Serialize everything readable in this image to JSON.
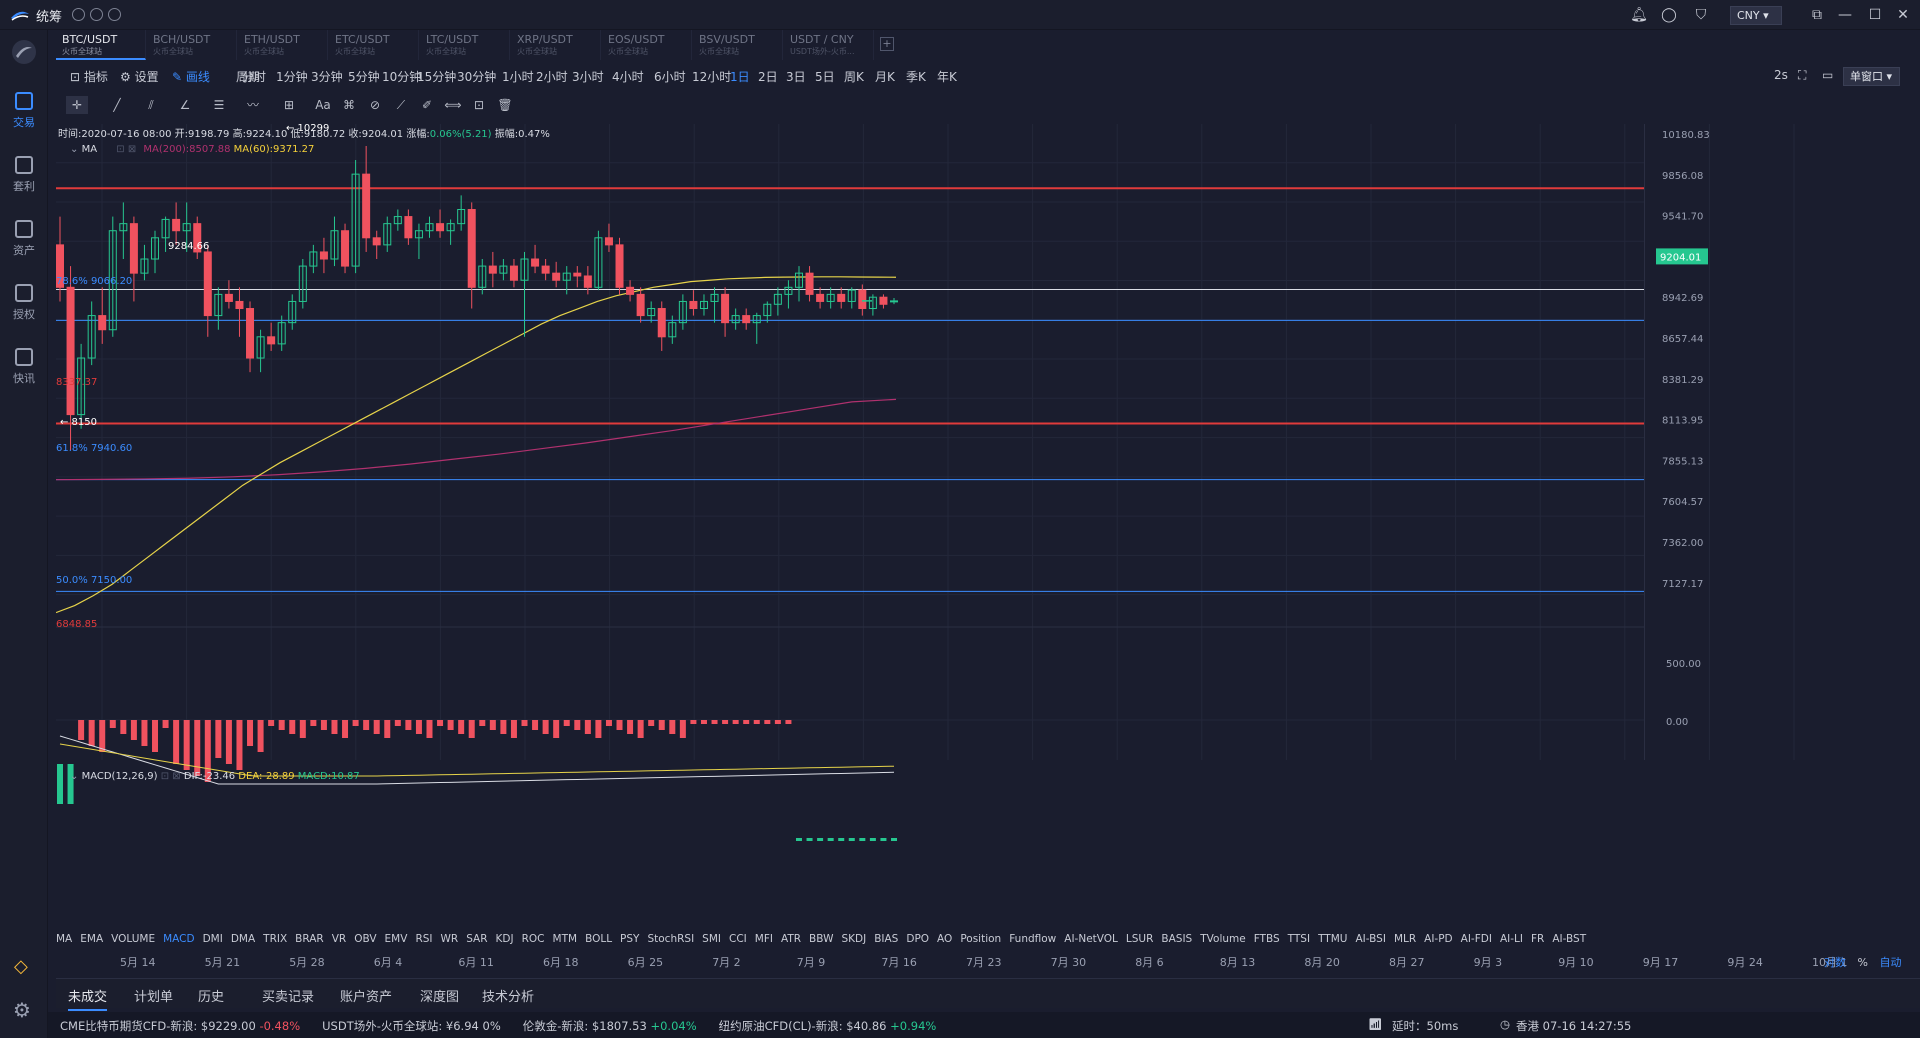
{
  "app": {
    "name": "统筹",
    "currency": "CNY"
  },
  "sidebar": [
    {
      "label": "交易",
      "active": true
    },
    {
      "label": "套利"
    },
    {
      "label": "资产"
    },
    {
      "label": "授权"
    },
    {
      "label": "快讯"
    }
  ],
  "tabs": [
    {
      "pair": "BTC/USDT",
      "source": "火币全球站",
      "active": true
    },
    {
      "pair": "BCH/USDT",
      "source": "火币全球站"
    },
    {
      "pair": "ETH/USDT",
      "source": "火币全球站"
    },
    {
      "pair": "ETC/USDT",
      "source": "火币全球站"
    },
    {
      "pair": "LTC/USDT",
      "source": "火币全球站"
    },
    {
      "pair": "XRP/USDT",
      "source": "火币全球站"
    },
    {
      "pair": "EOS/USDT",
      "source": "火币全球站"
    },
    {
      "pair": "BSV/USDT",
      "source": "火币全球站"
    },
    {
      "pair": "USDT / CNY",
      "source": "USDT场外-火币..."
    }
  ],
  "toolbar": {
    "indicator": "指标",
    "settings": "设置",
    "draw": "画线",
    "period": "周期",
    "intervals": [
      "分时",
      "1分钟",
      "3分钟",
      "5分钟",
      "10分钟",
      "15分钟",
      "30分钟",
      "1小时",
      "2小时",
      "3小时",
      "4小时",
      "6小时",
      "12小时",
      "1日",
      "2日",
      "3日",
      "5日",
      "周K",
      "月K",
      "季K",
      "年K"
    ],
    "active_interval": "1日",
    "refresh": "2s",
    "mode": "单窗口"
  },
  "info": {
    "time": "时间:2020-07-16 08:00",
    "open": "开:9198.79",
    "high": "高:9224.10",
    "low": "低:9180.72",
    "close": "收:9204.01",
    "change_label": "涨幅:",
    "change": "0.06%(5.21)",
    "amp": "振幅:0.47%"
  },
  "ma": {
    "label": "MA",
    "ma200": "MA(200):8507.88",
    "ma60": "MA(60):9371.27"
  },
  "macd": {
    "label": "MACD(12,26,9)",
    "dif": "DIF:-23.46",
    "dea": "DEA:-28.89",
    "macd": "MACD:10.87"
  },
  "price_axis": [
    "10180.83",
    "9856.08",
    "9541.70",
    "9204.01",
    "8942.69",
    "8657.44",
    "8381.29",
    "8113.95",
    "7855.13",
    "7604.57",
    "7362.00",
    "7127.17"
  ],
  "macd_axis": [
    "500.00",
    "0.00"
  ],
  "annotations": {
    "high": "10299",
    "low": "8150",
    "mid": "9284.66",
    "fib786": "78.6% 9066.20",
    "red1": "8337.37",
    "fib618": "61.8% 7940.60",
    "fib50": "50.0% 7150.00",
    "red2": "6848.85"
  },
  "indicators": [
    "MA",
    "EMA",
    "VOLUME",
    "MACD",
    "DMI",
    "DMA",
    "TRIX",
    "BRAR",
    "VR",
    "OBV",
    "EMV",
    "RSI",
    "WR",
    "SAR",
    "KDJ",
    "ROC",
    "MTM",
    "BOLL",
    "PSY",
    "StochRSI",
    "SMI",
    "CCI",
    "MFI",
    "ATR",
    "BBW",
    "SKDJ",
    "BIAS",
    "DPO",
    "AO",
    "Position",
    "Fundflow",
    "AI-NetVOL",
    "LSUR",
    "BASIS",
    "TVolume",
    "FTBS",
    "TTSI",
    "TTMU",
    "AI-BSI",
    "MLR",
    "AI-PD",
    "AI-FDI",
    "AI-LI",
    "FR",
    "AI-BST"
  ],
  "active_indicator": "MACD",
  "dates": [
    "5月 14",
    "5月 21",
    "5月 28",
    "6月 4",
    "6月 11",
    "6月 18",
    "6月 25",
    "7月 2",
    "7月 9",
    "7月 16",
    "7月 23",
    "7月 30",
    "8月 6",
    "8月 13",
    "8月 20",
    "8月 27",
    "9月 3",
    "9月 10",
    "9月 17",
    "9月 24",
    "10月 1"
  ],
  "axis_btns": {
    "log": "对数",
    "pct": "%",
    "auto": "自动"
  },
  "bottom_tabs": [
    "未成交",
    "计划单",
    "历史",
    "买卖记录",
    "账户资产",
    "深度图",
    "技术分析"
  ],
  "status": {
    "items": [
      {
        "name": "CME比特币期货CFD-新浪:",
        "price": "$9229.00",
        "chg": "-0.48%",
        "dir": "dn"
      },
      {
        "name": "USDT场外-火币全球站:",
        "price": "¥6.94",
        "chg": "0%",
        "dir": "flat"
      },
      {
        "name": "伦敦金-新浪:",
        "price": "$1807.53",
        "chg": "+0.04%",
        "dir": "up"
      },
      {
        "name": "纽约原油CFD(CL)-新浪:",
        "price": "$40.86",
        "chg": "+0.94%",
        "dir": "up"
      }
    ],
    "latency": "延时：50ms",
    "clock": "香港 07-16 14:27:55"
  },
  "chart_data": {
    "type": "candlestick",
    "symbol": "BTC/USDT",
    "last_price": 9204.01,
    "candles": [
      {
        "o": 9600,
        "h": 9800,
        "l": 9200,
        "c": 9300
      },
      {
        "o": 9300,
        "h": 9450,
        "l": 8150,
        "c": 8400
      },
      {
        "o": 8400,
        "h": 8900,
        "l": 8300,
        "c": 8800
      },
      {
        "o": 8800,
        "h": 9200,
        "l": 8750,
        "c": 9100
      },
      {
        "o": 9100,
        "h": 9300,
        "l": 8900,
        "c": 9000
      },
      {
        "o": 9000,
        "h": 9800,
        "l": 8950,
        "c": 9700
      },
      {
        "o": 9700,
        "h": 9900,
        "l": 9500,
        "c": 9750
      },
      {
        "o": 9750,
        "h": 9800,
        "l": 9200,
        "c": 9400
      },
      {
        "o": 9400,
        "h": 9600,
        "l": 9350,
        "c": 9500
      },
      {
        "o": 9500,
        "h": 9700,
        "l": 9400,
        "c": 9650
      },
      {
        "o": 9650,
        "h": 9800,
        "l": 9550,
        "c": 9780
      },
      {
        "o": 9780,
        "h": 9900,
        "l": 9600,
        "c": 9700
      },
      {
        "o": 9700,
        "h": 9900,
        "l": 9550,
        "c": 9750
      },
      {
        "o": 9750,
        "h": 9800,
        "l": 9500,
        "c": 9550
      },
      {
        "o": 9550,
        "h": 9600,
        "l": 8950,
        "c": 9100
      },
      {
        "o": 9100,
        "h": 9300,
        "l": 9000,
        "c": 9250
      },
      {
        "o": 9250,
        "h": 9350,
        "l": 9150,
        "c": 9200
      },
      {
        "o": 9200,
        "h": 9300,
        "l": 8950,
        "c": 9150
      },
      {
        "o": 9150,
        "h": 9200,
        "l": 8700,
        "c": 8800
      },
      {
        "o": 8800,
        "h": 9000,
        "l": 8700,
        "c": 8950
      },
      {
        "o": 8950,
        "h": 9050,
        "l": 8850,
        "c": 8900
      },
      {
        "o": 8900,
        "h": 9100,
        "l": 8850,
        "c": 9050
      },
      {
        "o": 9050,
        "h": 9250,
        "l": 9000,
        "c": 9200
      },
      {
        "o": 9200,
        "h": 9500,
        "l": 9150,
        "c": 9450
      },
      {
        "o": 9450,
        "h": 9600,
        "l": 9400,
        "c": 9550
      },
      {
        "o": 9550,
        "h": 9650,
        "l": 9400,
        "c": 9500
      },
      {
        "o": 9500,
        "h": 9800,
        "l": 9450,
        "c": 9700
      },
      {
        "o": 9700,
        "h": 9750,
        "l": 9400,
        "c": 9450
      },
      {
        "o": 9450,
        "h": 10200,
        "l": 9400,
        "c": 10100
      },
      {
        "o": 10100,
        "h": 10299,
        "l": 9550,
        "c": 9650
      },
      {
        "o": 9650,
        "h": 9700,
        "l": 9500,
        "c": 9600
      },
      {
        "o": 9600,
        "h": 9800,
        "l": 9550,
        "c": 9750
      },
      {
        "o": 9750,
        "h": 9850,
        "l": 9700,
        "c": 9800
      },
      {
        "o": 9800,
        "h": 9850,
        "l": 9600,
        "c": 9650
      },
      {
        "o": 9650,
        "h": 9750,
        "l": 9500,
        "c": 9700
      },
      {
        "o": 9700,
        "h": 9800,
        "l": 9650,
        "c": 9750
      },
      {
        "o": 9750,
        "h": 9850,
        "l": 9650,
        "c": 9700
      },
      {
        "o": 9700,
        "h": 9780,
        "l": 9600,
        "c": 9750
      },
      {
        "o": 9750,
        "h": 9950,
        "l": 9700,
        "c": 9850
      },
      {
        "o": 9850,
        "h": 9900,
        "l": 9150,
        "c": 9300
      },
      {
        "o": 9300,
        "h": 9500,
        "l": 9250,
        "c": 9450
      },
      {
        "o": 9450,
        "h": 9550,
        "l": 9300,
        "c": 9400
      },
      {
        "o": 9400,
        "h": 9500,
        "l": 9350,
        "c": 9450
      },
      {
        "o": 9450,
        "h": 9500,
        "l": 9300,
        "c": 9350
      },
      {
        "o": 9350,
        "h": 9550,
        "l": 8950,
        "c": 9500
      },
      {
        "o": 9500,
        "h": 9600,
        "l": 9400,
        "c": 9450
      },
      {
        "o": 9450,
        "h": 9500,
        "l": 9350,
        "c": 9400
      },
      {
        "o": 9400,
        "h": 9480,
        "l": 9300,
        "c": 9350
      },
      {
        "o": 9350,
        "h": 9450,
        "l": 9250,
        "c": 9400
      },
      {
        "o": 9400,
        "h": 9450,
        "l": 9300,
        "c": 9380
      },
      {
        "o": 9380,
        "h": 9450,
        "l": 9250,
        "c": 9300
      },
      {
        "o": 9300,
        "h": 9700,
        "l": 9280,
        "c": 9650
      },
      {
        "o": 9650,
        "h": 9750,
        "l": 9550,
        "c": 9600
      },
      {
        "o": 9600,
        "h": 9650,
        "l": 9250,
        "c": 9300
      },
      {
        "o": 9300,
        "h": 9350,
        "l": 9200,
        "c": 9250
      },
      {
        "o": 9250,
        "h": 9300,
        "l": 9050,
        "c": 9100
      },
      {
        "o": 9100,
        "h": 9200,
        "l": 9050,
        "c": 9150
      },
      {
        "o": 9150,
        "h": 9200,
        "l": 8850,
        "c": 8950
      },
      {
        "o": 8950,
        "h": 9100,
        "l": 8900,
        "c": 9050
      },
      {
        "o": 9050,
        "h": 9250,
        "l": 9000,
        "c": 9200
      },
      {
        "o": 9200,
        "h": 9280,
        "l": 9100,
        "c": 9150
      },
      {
        "o": 9150,
        "h": 9250,
        "l": 9100,
        "c": 9200
      },
      {
        "o": 9200,
        "h": 9300,
        "l": 9050,
        "c": 9250
      },
      {
        "o": 9250,
        "h": 9300,
        "l": 8950,
        "c": 9050
      },
      {
        "o": 9050,
        "h": 9150,
        "l": 9000,
        "c": 9100
      },
      {
        "o": 9100,
        "h": 9150,
        "l": 9000,
        "c": 9050
      },
      {
        "o": 9050,
        "h": 9120,
        "l": 8900,
        "c": 9100
      },
      {
        "o": 9100,
        "h": 9200,
        "l": 9050,
        "c": 9180
      },
      {
        "o": 9180,
        "h": 9300,
        "l": 9100,
        "c": 9250
      },
      {
        "o": 9250,
        "h": 9350,
        "l": 9150,
        "c": 9300
      },
      {
        "o": 9300,
        "h": 9450,
        "l": 9200,
        "c": 9400
      },
      {
        "o": 9400,
        "h": 9450,
        "l": 9200,
        "c": 9250
      },
      {
        "o": 9250,
        "h": 9300,
        "l": 9150,
        "c": 9200
      },
      {
        "o": 9200,
        "h": 9300,
        "l": 9150,
        "c": 9250
      },
      {
        "o": 9250,
        "h": 9300,
        "l": 9150,
        "c": 9200
      },
      {
        "o": 9200,
        "h": 9300,
        "l": 9150,
        "c": 9280
      },
      {
        "o": 9280,
        "h": 9320,
        "l": 9100,
        "c": 9150
      },
      {
        "o": 9150,
        "h": 9250,
        "l": 9100,
        "c": 9230
      },
      {
        "o": 9230,
        "h": 9250,
        "l": 9150,
        "c": 9180
      },
      {
        "o": 9198.79,
        "h": 9224.1,
        "l": 9180.72,
        "c": 9204.01
      }
    ],
    "ma60": [
      7000,
      7050,
      7120,
      7200,
      7300,
      7400,
      7500,
      7600,
      7700,
      7800,
      7900,
      7980,
      8060,
      8130,
      8200,
      8270,
      8340,
      8410,
      8480,
      8550,
      8620,
      8690,
      8760,
      8830,
      8900,
      8970,
      9040,
      9100,
      9150,
      9200,
      9240,
      9270,
      9300,
      9320,
      9340,
      9350,
      9360,
      9365,
      9370,
      9372,
      9373,
      9374,
      9374,
      9373,
      9372,
      9371.27
    ],
    "ma200": [
      7940,
      7942,
      7945,
      7950,
      7960,
      7975,
      7995,
      8020,
      8050,
      8085,
      8120,
      8160,
      8200,
      8245,
      8290,
      8340,
      8390,
      8440,
      8490,
      8507.88
    ],
    "horizontal_lines": [
      10000,
      8337.37,
      9284.66,
      9066.2,
      7940.6,
      7150
    ],
    "macd": {
      "dif": -23.46,
      "dea": -28.89,
      "hist": 10.87
    }
  }
}
